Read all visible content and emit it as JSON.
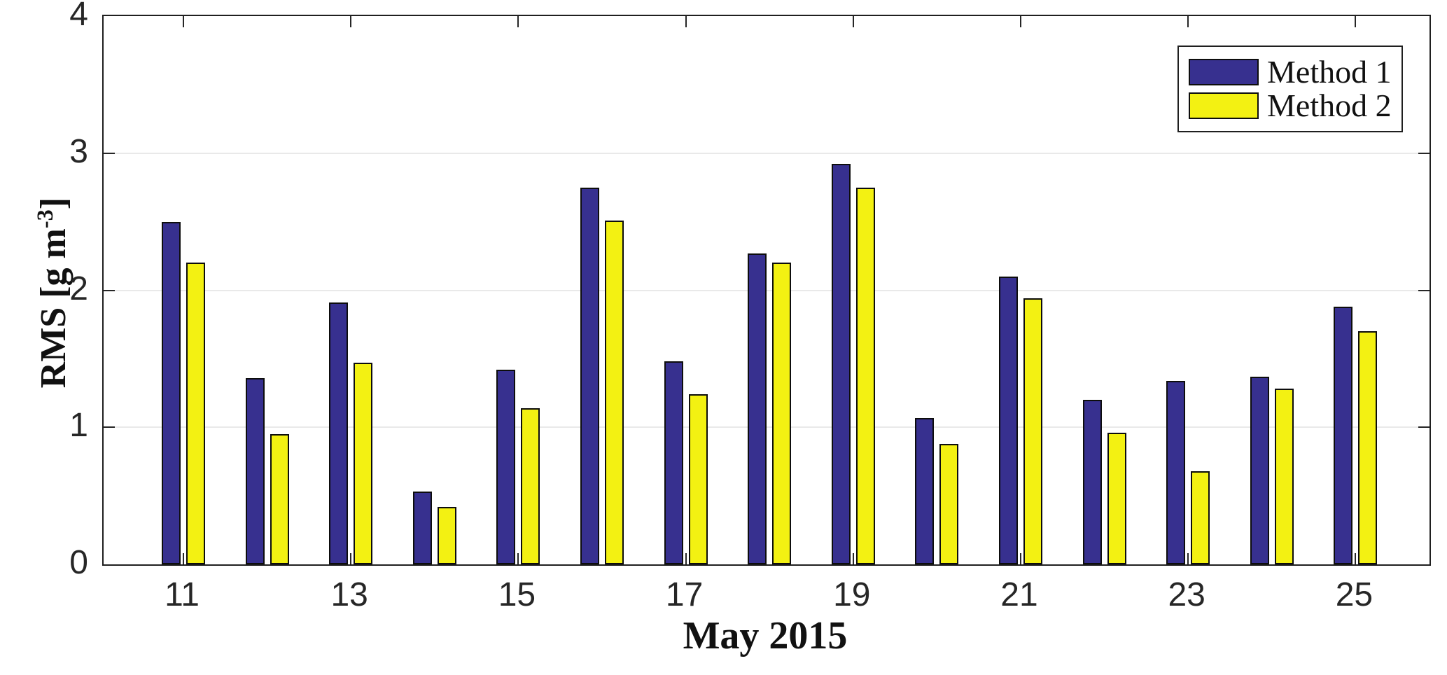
{
  "figure": {
    "xlabel": "May 2015",
    "ylabel": {
      "base": "RMS [g m",
      "exponent": "-3",
      "close": "]"
    }
  },
  "legend": {
    "items": [
      {
        "label": "Method 1",
        "color": "#37308F"
      },
      {
        "label": "Method 2",
        "color": "#F3F112"
      }
    ]
  },
  "chart_data": {
    "type": "bar",
    "title": "",
    "xlabel": "May 2015",
    "ylabel": "RMS [g m^-3]",
    "categories": [
      11,
      12,
      13,
      14,
      15,
      16,
      17,
      18,
      19,
      20,
      21,
      22,
      23,
      24,
      25
    ],
    "series": [
      {
        "name": "Method 1",
        "color": "#37308F",
        "values": [
          2.5,
          1.36,
          1.91,
          0.53,
          1.42,
          2.75,
          1.48,
          2.27,
          2.92,
          1.07,
          2.1,
          1.2,
          1.34,
          1.37,
          1.88
        ]
      },
      {
        "name": "Method 2",
        "color": "#F3F112",
        "values": [
          2.2,
          0.95,
          1.47,
          0.42,
          1.14,
          2.51,
          1.24,
          2.2,
          2.75,
          0.88,
          1.94,
          0.96,
          0.68,
          1.28,
          1.7
        ]
      }
    ],
    "ylim": [
      0,
      4
    ],
    "yticks": [
      0,
      1,
      2,
      3,
      4
    ],
    "xtick_labels": [
      11,
      13,
      15,
      17,
      19,
      21,
      23,
      25
    ],
    "grid": "horizontal",
    "bar_edge_color": "#0d0d0d",
    "legend_position": "top-right"
  }
}
